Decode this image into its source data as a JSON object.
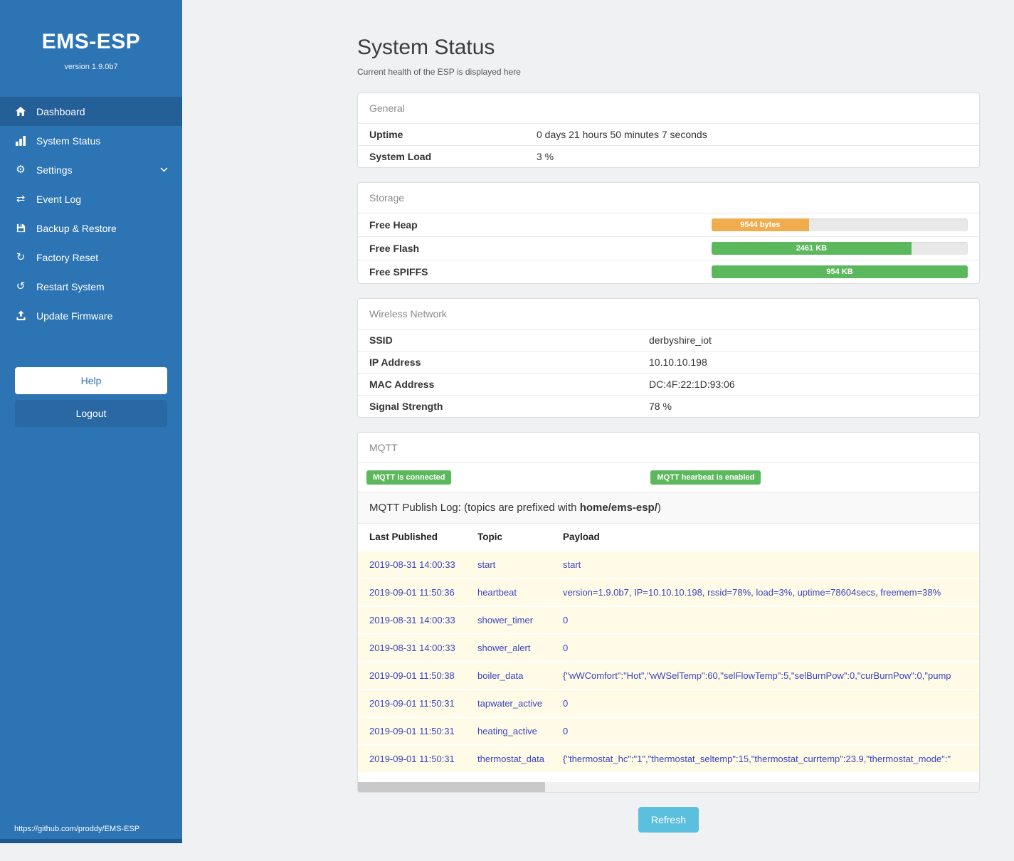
{
  "theme": {
    "sidebar": "#2d74b4",
    "sidebar-active": "#255f97",
    "logout": "#2a68a4",
    "success": "#5cb85c",
    "warning": "#f0ad4e",
    "info": "#5bc0de",
    "link": "#3a43c2",
    "row-yellow": "#fffbe6"
  },
  "sidebar": {
    "title": "EMS-ESP",
    "version": "version 1.9.0b7",
    "items": [
      {
        "label": "Dashboard",
        "icon": "home",
        "active": true
      },
      {
        "label": "System Status",
        "icon": "chart",
        "active": false
      },
      {
        "label": "Settings",
        "icon": "gear",
        "active": false,
        "chevron": true
      },
      {
        "label": "Event Log",
        "icon": "exchange",
        "active": false
      },
      {
        "label": "Backup & Restore",
        "icon": "save",
        "active": false
      },
      {
        "label": "Factory Reset",
        "icon": "reset",
        "active": false
      },
      {
        "label": "Restart System",
        "icon": "restart",
        "active": false
      },
      {
        "label": "Update Firmware",
        "icon": "upload",
        "active": false
      }
    ],
    "help_label": "Help",
    "logout_label": "Logout",
    "footer_link": "https://github.com/proddy/EMS-ESP"
  },
  "page": {
    "title": "System Status",
    "subtitle": "Current health of the ESP is displayed here",
    "refresh_label": "Refresh"
  },
  "panels": {
    "general": {
      "header": "General",
      "rows": [
        {
          "label": "Uptime",
          "value": "0 days 21 hours 50 minutes 7 seconds"
        },
        {
          "label": "System Load",
          "value": "3 %"
        }
      ]
    },
    "storage": {
      "header": "Storage",
      "rows": [
        {
          "label": "Free Heap",
          "bar_label": "9544 bytes",
          "percent": 38,
          "color": "#f0ad4e"
        },
        {
          "label": "Free Flash",
          "bar_label": "2461 KB",
          "percent": 78,
          "color": "#5cb85c"
        },
        {
          "label": "Free SPIFFS",
          "bar_label": "954 KB",
          "percent": 100,
          "color": "#5cb85c"
        }
      ]
    },
    "wireless": {
      "header": "Wireless Network",
      "rows": [
        {
          "label": "SSID",
          "value": "derbyshire_iot"
        },
        {
          "label": "IP Address",
          "value": "10.10.10.198"
        },
        {
          "label": "MAC Address",
          "value": "DC:4F:22:1D:93:06"
        },
        {
          "label": "Signal Strength",
          "value": "78 %"
        }
      ]
    },
    "mqtt": {
      "header": "MQTT",
      "badges": [
        "MQTT is connected",
        "MQTT hearbeat is enabled"
      ],
      "log_title": {
        "prefix": "MQTT Publish Log: (topics are prefixed with ",
        "bold": "home/ems-esp/",
        "suffix": ")"
      },
      "columns": [
        "Last Published",
        "Topic",
        "Payload"
      ],
      "rows": [
        {
          "published": "2019-08-31 14:00:33",
          "topic": "start",
          "payload": "start"
        },
        {
          "published": "2019-09-01 11:50:36",
          "topic": "heartbeat",
          "payload": "version=1.9.0b7, IP=10.10.10.198, rssid=78%, load=3%, uptime=78604secs, freemem=38%"
        },
        {
          "published": "2019-08-31 14:00:33",
          "topic": "shower_timer",
          "payload": "0"
        },
        {
          "published": "2019-08-31 14:00:33",
          "topic": "shower_alert",
          "payload": "0"
        },
        {
          "published": "2019-09-01 11:50:38",
          "topic": "boiler_data",
          "payload": "{\"wWComfort\":\"Hot\",\"wWSelTemp\":60,\"selFlowTemp\":5,\"selBurnPow\":0,\"curBurnPow\":0,\"pump"
        },
        {
          "published": "2019-09-01 11:50:31",
          "topic": "tapwater_active",
          "payload": "0"
        },
        {
          "published": "2019-09-01 11:50:31",
          "topic": "heating_active",
          "payload": "0"
        },
        {
          "published": "2019-09-01 11:50:31",
          "topic": "thermostat_data",
          "payload": "{\"thermostat_hc\":\"1\",\"thermostat_seltemp\":15,\"thermostat_currtemp\":23.9,\"thermostat_mode\":\""
        }
      ]
    }
  }
}
